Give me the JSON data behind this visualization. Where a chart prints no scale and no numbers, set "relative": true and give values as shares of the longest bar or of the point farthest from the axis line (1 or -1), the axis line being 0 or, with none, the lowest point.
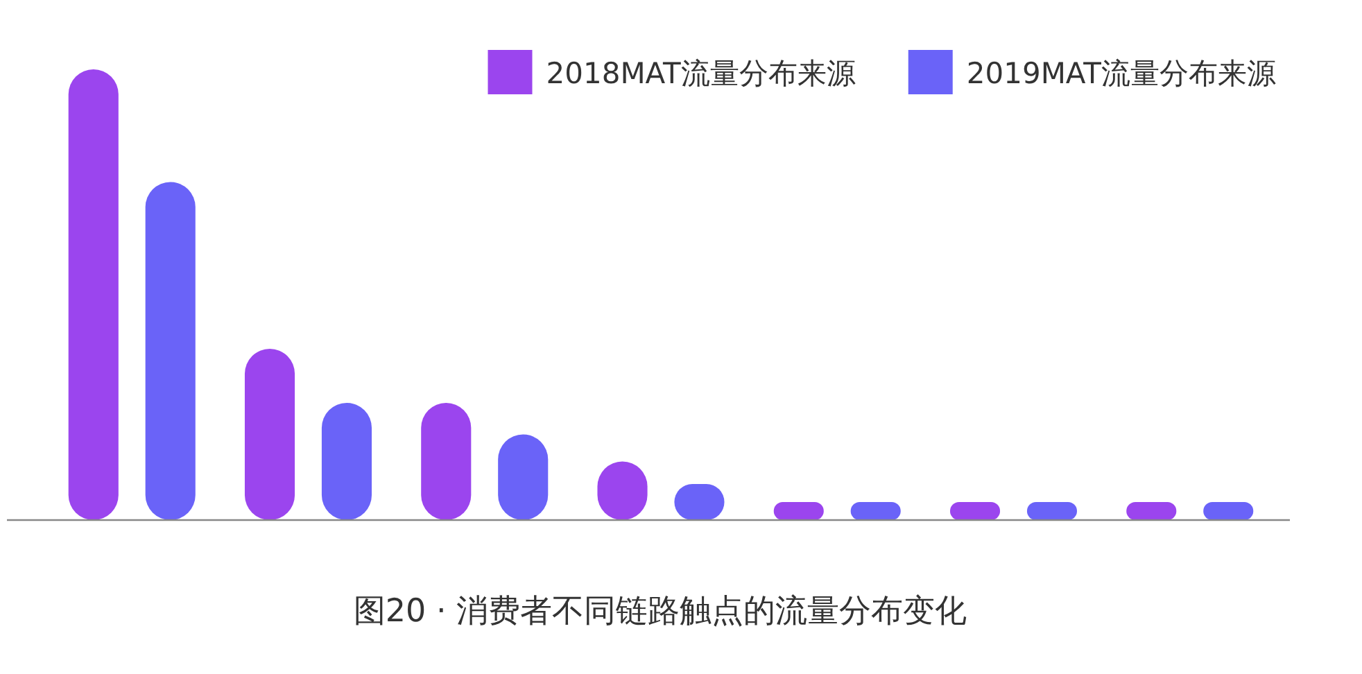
{
  "chart_data": {
    "type": "bar",
    "relative": true,
    "title": "图20 · 消费者不同链路触点的流量分布变化",
    "categories": [
      null,
      null,
      null,
      null,
      null,
      null,
      null
    ],
    "legend": "top right",
    "series": [
      {
        "name": "2018MAT流量分布来源",
        "color": "#9b45ee",
        "values": [
          1,
          0.38,
          0.26,
          0.13,
          0.04,
          0.04,
          0.04
        ]
      },
      {
        "name": "2019MAT流量分布来源",
        "color": "#6a63f8",
        "values": [
          0.75,
          0.26,
          0.19,
          0.08,
          0.04,
          0.04,
          0.04
        ]
      }
    ]
  }
}
